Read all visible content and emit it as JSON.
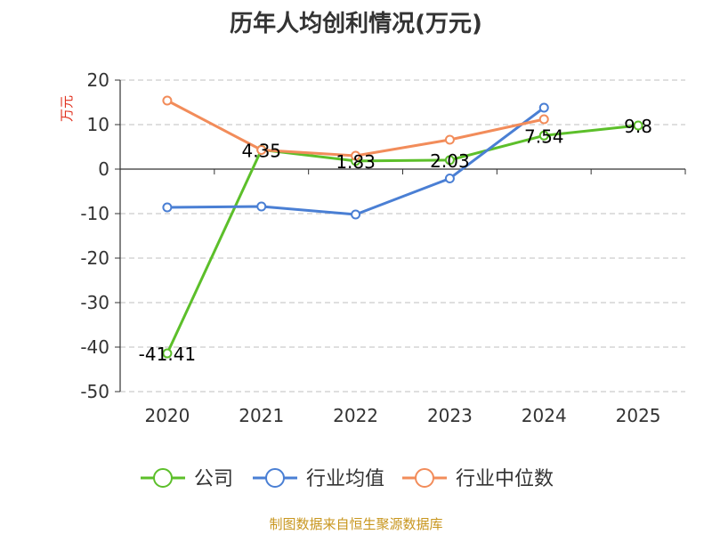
{
  "chart_data": {
    "type": "line",
    "title": "历年人均创利情况(万元)",
    "ylabel": "万元",
    "xlabel": "",
    "ylim": [
      -50,
      20
    ],
    "yticks": [
      20,
      10,
      0,
      -10,
      -20,
      -30,
      -40,
      -50
    ],
    "categories": [
      "2020",
      "2021",
      "2022",
      "2023",
      "2024",
      "2025"
    ],
    "grid": true,
    "legend_position": "bottom",
    "series": [
      {
        "name": "公司",
        "color": "#5cbf2a",
        "values": [
          -41.41,
          4.35,
          1.83,
          2.03,
          7.54,
          9.8
        ],
        "labels": [
          "-41.41",
          "4.35",
          "1.83",
          "2.03",
          "7.54",
          "9.8"
        ]
      },
      {
        "name": "行业均值",
        "color": "#4a7fd4",
        "values": [
          -8.6,
          -8.4,
          -10.2,
          -2.1,
          13.8,
          null
        ]
      },
      {
        "name": "行业中位数",
        "color": "#f28c5a",
        "values": [
          15.4,
          4.3,
          3.0,
          6.6,
          11.2,
          null
        ]
      }
    ]
  },
  "source_text": "制图数据来自恒生聚源数据库"
}
